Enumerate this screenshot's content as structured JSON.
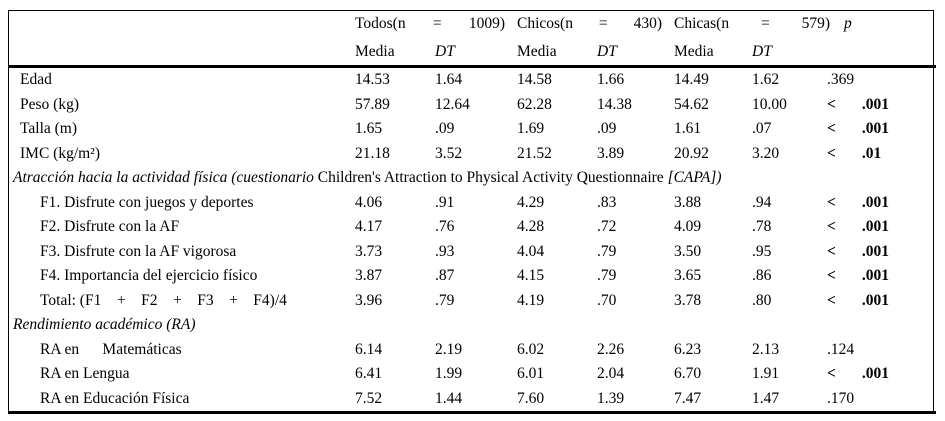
{
  "colors": {
    "text": "#000000",
    "background": "#ffffff",
    "rule": "#000000"
  },
  "table": {
    "header": {
      "groups": [
        {
          "parts": [
            "Todos(n",
            "=",
            "1009)"
          ]
        },
        {
          "parts": [
            "Chicos(n",
            "=",
            "430)"
          ]
        },
        {
          "parts": [
            "Chicas(n",
            "=",
            "579)"
          ]
        }
      ],
      "p_label": "p",
      "subheaders": [
        "Media",
        "DT",
        "Media",
        "DT",
        "Media",
        "DT"
      ]
    },
    "rows": [
      {
        "type": "data",
        "indent": 0,
        "label": "Edad",
        "values": [
          "14.53",
          "1.64",
          "14.58",
          "1.66",
          "14.49",
          "1.62"
        ],
        "p": ".369",
        "p_strong": false
      },
      {
        "type": "data",
        "indent": 0,
        "label": "Peso (kg)",
        "values": [
          "57.89",
          "12.64",
          "62.28",
          "14.38",
          "54.62",
          "10.00"
        ],
        "p": "< .001",
        "p_strong": true
      },
      {
        "type": "data",
        "indent": 0,
        "label": "Talla (m)",
        "values": [
          "1.65",
          ".09",
          "1.69",
          ".09",
          "1.61",
          ".07"
        ],
        "p": "< .001",
        "p_strong": true
      },
      {
        "type": "data",
        "indent": 0,
        "label": "IMC (kg/m²)",
        "values": [
          "21.18",
          "3.52",
          "21.52",
          "3.89",
          "20.92",
          "3.20"
        ],
        "p": "< .01",
        "p_strong": true
      },
      {
        "type": "section",
        "parts": [
          {
            "text": "Atracción hacia la actividad física (cuestionario ",
            "italic": true
          },
          {
            "text": "Children's Attraction to Physical Activity Questionnaire ",
            "italic": false
          },
          {
            "text": "[CAPA])",
            "italic": true
          }
        ]
      },
      {
        "type": "data",
        "indent": 1,
        "label": "F1. Disfrute con juegos y deportes",
        "values": [
          "4.06",
          ".91",
          "4.29",
          ".83",
          "3.88",
          ".94"
        ],
        "p": "< .001",
        "p_strong": true
      },
      {
        "type": "data",
        "indent": 1,
        "label": "F2. Disfrute con la AF",
        "values": [
          "4.17",
          ".76",
          "4.28",
          ".72",
          "4.09",
          ".78"
        ],
        "p": "< .001",
        "p_strong": true
      },
      {
        "type": "data",
        "indent": 1,
        "label": "F3. Disfrute con la AF vigorosa",
        "values": [
          "3.73",
          ".93",
          "4.04",
          ".79",
          "3.50",
          ".95"
        ],
        "p": "< .001",
        "p_strong": true
      },
      {
        "type": "data",
        "indent": 1,
        "label": "F4. Importancia del ejercicio físico",
        "values": [
          "3.87",
          ".87",
          "4.15",
          ".79",
          "3.65",
          ".86"
        ],
        "p": "< .001",
        "p_strong": true
      },
      {
        "type": "data",
        "indent": 1,
        "label": "Total: (F1    +    F2    +    F3    +    F4)/4",
        "values": [
          "3.96",
          ".79",
          "4.19",
          ".70",
          "3.78",
          ".80"
        ],
        "p": "< .001",
        "p_strong": true
      },
      {
        "type": "section",
        "parts": [
          {
            "text": "Rendimiento académico (RA)",
            "italic": true
          }
        ]
      },
      {
        "type": "data",
        "indent": 1,
        "label": "RA en      Matemáticas",
        "values": [
          "6.14",
          "2.19",
          "6.02",
          "2.26",
          "6.23",
          "2.13"
        ],
        "p": ".124",
        "p_strong": false
      },
      {
        "type": "data",
        "indent": 1,
        "label": "RA en Lengua",
        "values": [
          "6.41",
          "1.99",
          "6.01",
          "2.04",
          "6.70",
          "1.91"
        ],
        "p": "< .001",
        "p_strong": true
      },
      {
        "type": "data",
        "indent": 1,
        "label": "RA en Educación Física",
        "values": [
          "7.52",
          "1.44",
          "7.60",
          "1.39",
          "7.47",
          "1.47"
        ],
        "p": ".170",
        "p_strong": false
      }
    ]
  }
}
